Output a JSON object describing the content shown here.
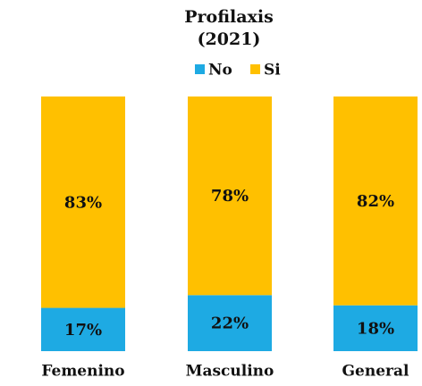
{
  "chart_data": {
    "type": "stacked_bar",
    "title": "Profilaxis",
    "subtitle": "(2021)",
    "categories": [
      "Femenino",
      "Masculino",
      "General"
    ],
    "series": [
      {
        "name": "No",
        "color": "#1eaae3",
        "values": [
          17,
          22,
          18
        ],
        "value_labels": [
          "17%",
          "22%",
          "18%"
        ]
      },
      {
        "name": "Si",
        "color": "#ffc000",
        "values": [
          83,
          78,
          82
        ],
        "value_labels": [
          "83%",
          "78%",
          "82%"
        ]
      }
    ],
    "legend": "top"
  }
}
